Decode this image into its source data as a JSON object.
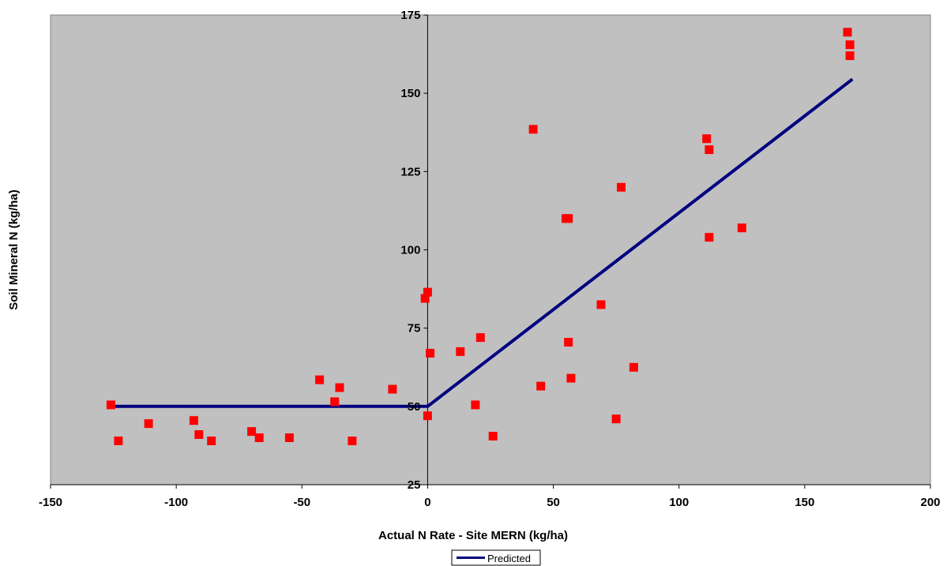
{
  "chart_data": {
    "type": "scatter",
    "title": "",
    "xlabel": "Actual N Rate - Site MERN (kg/ha)",
    "ylabel": "Soil Mineral N (kg/ha)",
    "xlim": [
      -150,
      200
    ],
    "ylim": [
      25,
      175
    ],
    "xticks": [
      -150,
      -100,
      -50,
      0,
      50,
      100,
      150,
      200
    ],
    "yticks": [
      25,
      50,
      75,
      100,
      125,
      150,
      175
    ],
    "grid": false,
    "plot_background": "#c0c0c0",
    "legend": {
      "placement": "bottom",
      "entries": [
        "Predicted"
      ]
    },
    "series": [
      {
        "kind": "scatter",
        "color": "#ff0000",
        "marker": "square",
        "points": [
          [
            -126,
            50.5
          ],
          [
            -123,
            39
          ],
          [
            -111,
            44.5
          ],
          [
            -93,
            45.5
          ],
          [
            -91,
            41
          ],
          [
            -86,
            39
          ],
          [
            -70,
            42
          ],
          [
            -67,
            40
          ],
          [
            -55,
            40
          ],
          [
            -43,
            58.5
          ],
          [
            -37,
            51.5
          ],
          [
            -35,
            56
          ],
          [
            -30,
            39
          ],
          [
            -14,
            55.5
          ],
          [
            -1,
            84.5
          ],
          [
            0,
            86.5
          ],
          [
            0,
            47
          ],
          [
            1,
            67
          ],
          [
            13,
            67.5
          ],
          [
            19,
            50.5
          ],
          [
            21,
            72
          ],
          [
            26,
            40.5
          ],
          [
            42,
            138.5
          ],
          [
            45,
            56.5
          ],
          [
            55,
            110
          ],
          [
            56,
            110
          ],
          [
            56,
            70.5
          ],
          [
            57,
            59
          ],
          [
            69,
            82.5
          ],
          [
            75,
            46
          ],
          [
            77,
            120
          ],
          [
            82,
            62.5
          ],
          [
            111,
            135.5
          ],
          [
            112,
            132
          ],
          [
            112,
            104
          ],
          [
            125,
            107
          ],
          [
            167,
            169.5
          ],
          [
            168,
            165.5
          ],
          [
            168,
            162
          ]
        ]
      },
      {
        "kind": "line",
        "name": "Predicted",
        "color": "#000080",
        "points": [
          [
            -126,
            50
          ],
          [
            0,
            50
          ],
          [
            169,
            154.5
          ]
        ]
      }
    ]
  }
}
